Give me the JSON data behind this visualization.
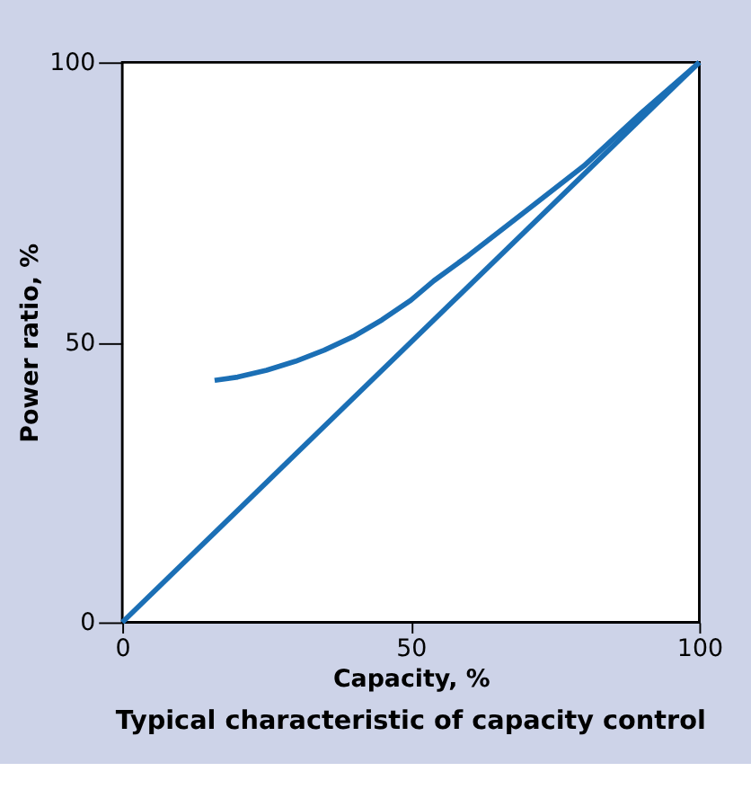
{
  "chart_data": {
    "type": "line",
    "title": "Typical characteristic of capacity control",
    "xlabel": "Capacity, %",
    "ylabel": "Power ratio, %",
    "xlim": [
      0,
      100
    ],
    "ylim": [
      0,
      100
    ],
    "xticks": [
      0,
      50,
      100
    ],
    "yticks": [
      0,
      50,
      100
    ],
    "grid": false,
    "line_style": "solid",
    "marker": "none",
    "series": [
      {
        "color": "#1b6fb5",
        "x": [
          16,
          20,
          25,
          30,
          35,
          40,
          45,
          50,
          54,
          60,
          70,
          80,
          90,
          100
        ],
        "values": [
          43.2,
          43.8,
          45,
          46.6,
          48.6,
          51,
          54,
          57.5,
          61,
          65.5,
          73.5,
          81.5,
          91,
          100
        ]
      },
      {
        "color": "#1b6fb5",
        "x": [
          0,
          100
        ],
        "values": [
          0,
          100
        ]
      }
    ]
  }
}
